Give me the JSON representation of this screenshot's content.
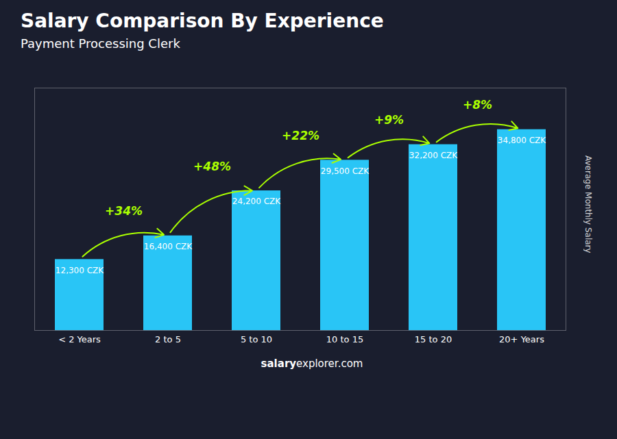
{
  "chart_data": {
    "type": "bar",
    "title": "Salary Comparison By Experience",
    "subtitle": "Payment Processing Clerk",
    "ylabel": "Average Monthly Salary",
    "categories": [
      "< 2 Years",
      "2 to 5",
      "5 to 10",
      "10 to 15",
      "15 to 20",
      "20+ Years"
    ],
    "values": [
      12300,
      16400,
      24200,
      29500,
      32200,
      34800
    ],
    "value_labels": [
      "12,300 CZK",
      "16,400 CZK",
      "24,200 CZK",
      "29,500 CZK",
      "32,200 CZK",
      "34,800 CZK"
    ],
    "data_labels": true,
    "color": "#29c5f6",
    "ylim": [
      0,
      42000
    ],
    "yticks": [],
    "tick_labels": "x",
    "grid": false,
    "annotations": [
      {
        "text": "+34%",
        "from": "< 2 Years",
        "to": "2 to 5",
        "color": "#aaff00"
      },
      {
        "text": "+48%",
        "from": "2 to 5",
        "to": "5 to 10",
        "color": "#aaff00"
      },
      {
        "text": "+22%",
        "from": "5 to 10",
        "to": "10 to 15",
        "color": "#aaff00"
      },
      {
        "text": "+9%",
        "from": "10 to 15",
        "to": "15 to 20",
        "color": "#aaff00"
      },
      {
        "text": "+8%",
        "from": "15 to 20",
        "to": "20+ Years",
        "color": "#aaff00"
      }
    ],
    "footer": [
      "salary",
      "explorer.com"
    ]
  }
}
